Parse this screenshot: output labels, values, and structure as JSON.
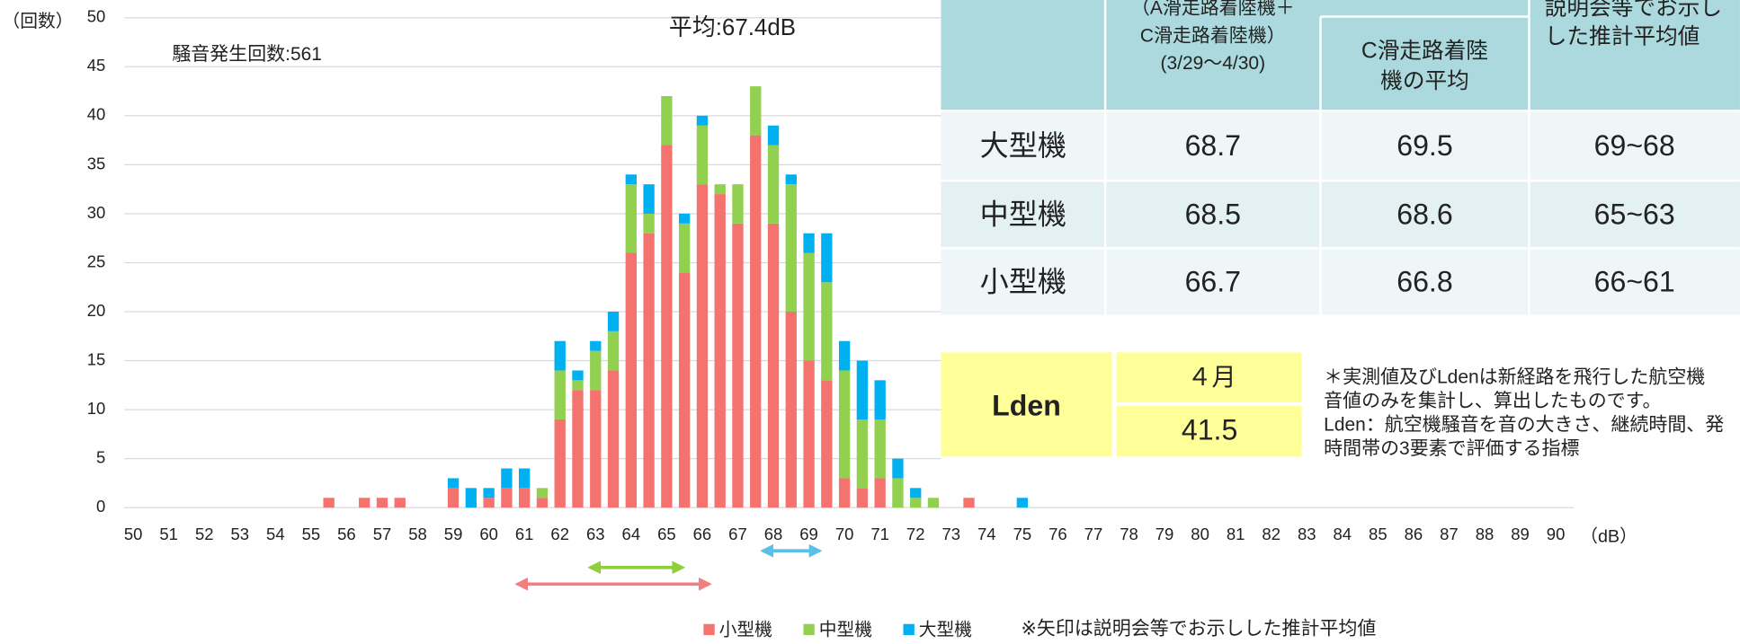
{
  "chart_data": {
    "type": "bar",
    "stacked": true,
    "y_label": "（回数）",
    "x_unit": "（dB）",
    "annotations": [
      "騒音発生回数:561",
      "平均:67.4dB"
    ],
    "x": [
      55.5,
      56.5,
      57,
      57.5,
      59,
      59.5,
      60,
      60.5,
      61,
      61.5,
      62,
      62.5,
      63,
      63.5,
      64,
      64.5,
      65,
      65.5,
      66,
      66.5,
      67,
      67.5,
      68,
      68.5,
      69,
      69.5,
      70,
      70.5,
      71,
      71.5,
      72,
      72.5,
      73.5,
      75
    ],
    "series": [
      {
        "name": "小型機",
        "color": "#f4736f",
        "values": [
          1,
          1,
          1,
          1,
          2,
          0,
          1,
          2,
          2,
          1,
          9,
          12,
          12,
          14,
          26,
          28,
          37,
          24,
          33,
          32,
          29,
          38,
          29,
          20,
          15,
          13,
          3,
          2,
          3,
          0,
          0,
          0,
          1,
          0
        ]
      },
      {
        "name": "中型機",
        "color": "#92d050",
        "values": [
          0,
          0,
          0,
          0,
          0,
          0,
          0,
          0,
          0,
          1,
          5,
          1,
          4,
          4,
          7,
          2,
          5,
          5,
          6,
          1,
          4,
          5,
          8,
          13,
          11,
          10,
          11,
          7,
          6,
          3,
          1,
          1,
          0,
          0
        ]
      },
      {
        "name": "大型機",
        "color": "#00b0f0",
        "values": [
          0,
          0,
          0,
          0,
          1,
          2,
          1,
          2,
          2,
          0,
          3,
          1,
          1,
          2,
          1,
          3,
          0,
          1,
          1,
          0,
          0,
          0,
          2,
          1,
          2,
          5,
          3,
          6,
          4,
          2,
          1,
          0,
          0,
          1
        ]
      }
    ],
    "xlim": [
      49.75,
      90.5
    ],
    "ylim": [
      0,
      50
    ],
    "xticks": [
      50,
      51,
      52,
      53,
      54,
      55,
      56,
      57,
      58,
      59,
      60,
      61,
      62,
      63,
      64,
      65,
      66,
      67,
      68,
      69,
      70,
      71,
      72,
      73,
      74,
      75,
      76,
      77,
      78,
      79,
      80,
      81,
      82,
      83,
      84,
      85,
      86,
      87,
      88,
      89,
      90
    ],
    "yticks": [
      0,
      5,
      10,
      15,
      20,
      25,
      30,
      35,
      40,
      45,
      50
    ],
    "grid": true,
    "legend_position": "bottom",
    "legend_note": "※矢印は説明会等でお示しした推計平均値",
    "arrows": [
      {
        "from": 60.8,
        "to": 66.2,
        "color": "#f08080"
      },
      {
        "from": 62.85,
        "to": 65.45,
        "color": "#8fce3c"
      },
      {
        "from": 67.7,
        "to": 69.3,
        "color": "#5bc0e8"
      }
    ]
  },
  "table": {
    "headers": [
      [
        "（A滑走路着陸機＋",
        "C滑走路着陸機）",
        "(3/29〜4/30)"
      ],
      [
        "C滑走路着陸",
        "機の平均"
      ],
      [
        "説明会等でお示し",
        "した推計平均値"
      ]
    ],
    "rows": [
      [
        "大型機",
        "68.7",
        "69.5",
        "69~68"
      ],
      [
        "中型機",
        "68.5",
        "68.6",
        "65~63"
      ],
      [
        "小型機",
        "66.7",
        "66.8",
        "66~61"
      ]
    ]
  },
  "lden": {
    "label": "Lden",
    "month": "４月",
    "value": "41.5"
  },
  "notes": [
    "＊実測値及びLdenは新経路を飛行した航空機",
    "音値のみを集計し、算出したものです。",
    "Lden：航空機騒音を音の大きさ、継続時間、発",
    "時間帯の3要素で評価する指標"
  ]
}
